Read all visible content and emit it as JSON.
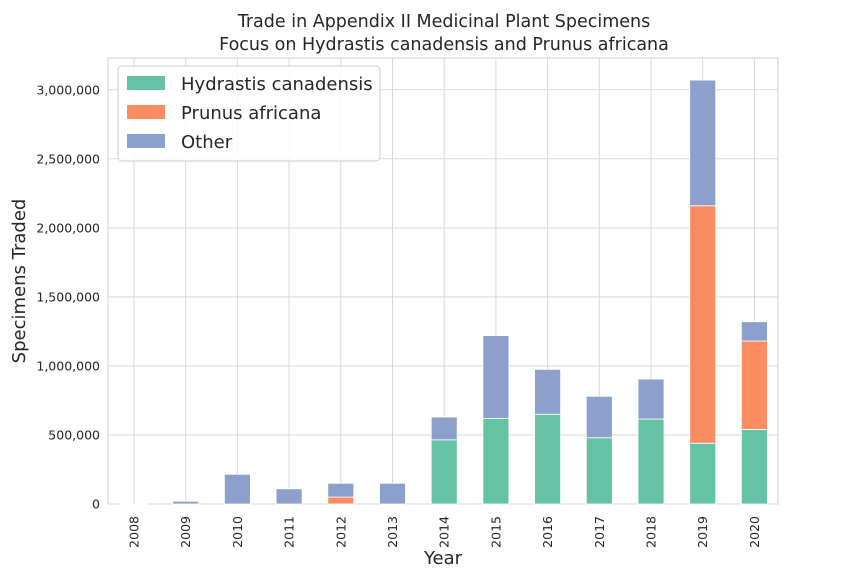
{
  "chart_data": {
    "type": "bar",
    "stacked": true,
    "title": "Trade in Appendix II Medicinal Plant Specimens",
    "subtitle": "Focus on Hydrastis canadensis and Prunus africana",
    "xlabel": "Year",
    "ylabel": "Specimens Traded",
    "categories": [
      "2008",
      "2009",
      "2010",
      "2011",
      "2012",
      "2013",
      "2014",
      "2015",
      "2016",
      "2017",
      "2018",
      "2019",
      "2020"
    ],
    "series": [
      {
        "name": "Hydrastis canadensis",
        "color": "#66c2a5",
        "values": [
          0,
          0,
          0,
          0,
          0,
          0,
          465000,
          620000,
          650000,
          480000,
          615000,
          440000,
          540000
        ]
      },
      {
        "name": "Prunus africana",
        "color": "#fc8d62",
        "values": [
          0,
          0,
          0,
          0,
          50000,
          0,
          0,
          0,
          0,
          0,
          0,
          1720000,
          640000
        ]
      },
      {
        "name": "Other",
        "color": "#8da0cb",
        "values": [
          2000,
          20000,
          215000,
          110000,
          100000,
          150000,
          165000,
          600000,
          325000,
          300000,
          290000,
          910000,
          140000
        ]
      }
    ],
    "ylim": [
      0,
      3230000
    ],
    "yticks": [
      0,
      500000,
      1000000,
      1500000,
      2000000,
      2500000,
      3000000
    ],
    "ytick_labels": [
      "0",
      "500,000",
      "1,000,000",
      "1,500,000",
      "2,000,000",
      "2,500,000",
      "3,000,000"
    ],
    "grid": true,
    "legend_position": "top-left"
  }
}
